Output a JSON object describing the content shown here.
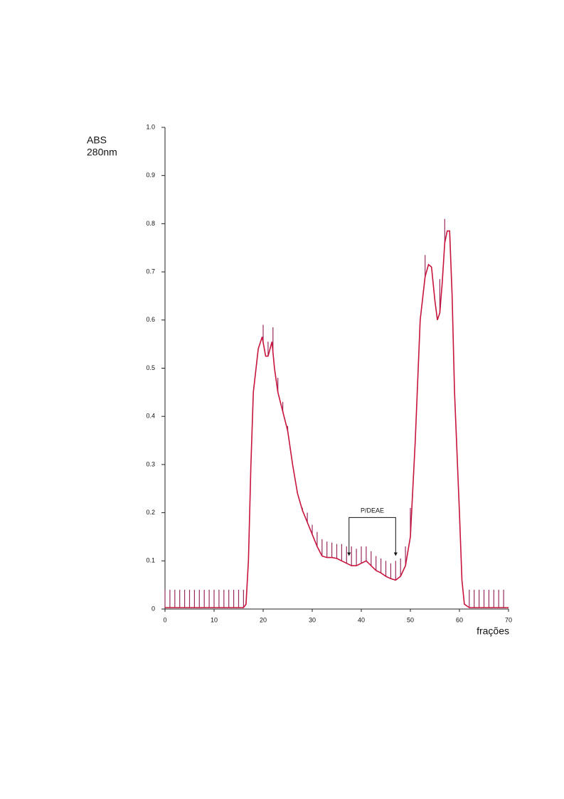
{
  "chart_data": {
    "type": "line",
    "ylabel": [
      "ABS",
      "280nm"
    ],
    "xlabel": "frações",
    "xlim": [
      0,
      70
    ],
    "ylim": [
      0,
      1
    ],
    "xticks": [
      0,
      10,
      20,
      30,
      40,
      50,
      60,
      70
    ],
    "yticks": [
      0,
      0.1,
      0.2,
      0.3,
      0.4,
      0.5,
      0.6,
      0.7,
      0.8,
      0.9,
      {
        "value": 1,
        "label": "1.0"
      }
    ],
    "series": [
      {
        "color": "#c8143c",
        "x": [
          0,
          16,
          16.5,
          17,
          17.5,
          18,
          19,
          19.8,
          20.5,
          21,
          21.8,
          22.3,
          23,
          24,
          25,
          26,
          27,
          28,
          29,
          30,
          31,
          32,
          33,
          34,
          35,
          36,
          37,
          38,
          39,
          40,
          41,
          42,
          43,
          44,
          45,
          46,
          47,
          48,
          49,
          50,
          51,
          52,
          53,
          53.7,
          54.3,
          55,
          55.5,
          56,
          56.5,
          57,
          57.5,
          58,
          58.5,
          59,
          60,
          60.5,
          61,
          62,
          70
        ],
        "values": [
          0.003,
          0.003,
          0.01,
          0.1,
          0.3,
          0.45,
          0.54,
          0.565,
          0.525,
          0.525,
          0.555,
          0.5,
          0.45,
          0.41,
          0.37,
          0.3,
          0.24,
          0.205,
          0.18,
          0.155,
          0.13,
          0.11,
          0.107,
          0.107,
          0.105,
          0.1,
          0.095,
          0.09,
          0.09,
          0.095,
          0.1,
          0.09,
          0.08,
          0.075,
          0.068,
          0.063,
          0.06,
          0.068,
          0.09,
          0.15,
          0.35,
          0.6,
          0.69,
          0.715,
          0.71,
          0.64,
          0.6,
          0.615,
          0.68,
          0.76,
          0.785,
          0.785,
          0.65,
          0.45,
          0.2,
          0.06,
          0.01,
          0.003,
          0.003
        ]
      }
    ],
    "marks": {
      "color": "#9a2a5e",
      "x": [
        0,
        1,
        2,
        3,
        4,
        5,
        6,
        7,
        8,
        9,
        10,
        11,
        12,
        13,
        14,
        15,
        16,
        20,
        21,
        22,
        23,
        24,
        25,
        26,
        27,
        28,
        29,
        30,
        31,
        32,
        33,
        34,
        35,
        36,
        37,
        38,
        39,
        40,
        41,
        42,
        43,
        44,
        45,
        46,
        47,
        48,
        49,
        50,
        53,
        56,
        57,
        62,
        63,
        64,
        65,
        66,
        67,
        68,
        69
      ],
      "values": [
        0.04,
        0.04,
        0.04,
        0.04,
        0.04,
        0.04,
        0.04,
        0.04,
        0.04,
        0.04,
        0.04,
        0.04,
        0.04,
        0.04,
        0.04,
        0.04,
        0.04,
        0.59,
        0.555,
        0.585,
        0.48,
        0.43,
        0.38,
        0.3,
        0.24,
        0.21,
        0.2,
        0.175,
        0.16,
        0.145,
        0.14,
        0.138,
        0.135,
        0.135,
        0.13,
        0.13,
        0.125,
        0.13,
        0.13,
        0.12,
        0.11,
        0.105,
        0.1,
        0.095,
        0.1,
        0.105,
        0.13,
        0.21,
        0.735,
        0.685,
        0.81,
        0.04,
        0.04,
        0.04,
        0.04,
        0.04,
        0.04,
        0.04,
        0.04
      ]
    },
    "annotation": {
      "text": "P/DEAE",
      "x": [
        37.5,
        47
      ],
      "y": 0.19,
      "arrow_to": 0.11
    }
  }
}
